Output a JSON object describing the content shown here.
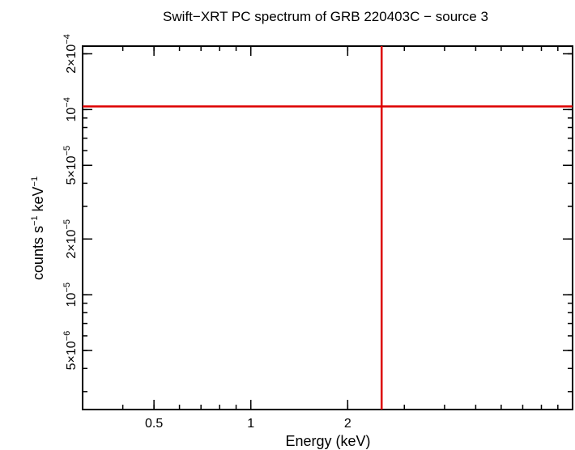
{
  "chart_data": {
    "type": "scatter",
    "title": "Swift−XRT PC spectrum of GRB 220403C − source 3",
    "xlabel": "Energy (keV)",
    "ylabel": "counts s⁻¹ keV⁻¹",
    "x_scale": "log",
    "y_scale": "log",
    "xlim": [
      0.3,
      10
    ],
    "ylim": [
      2.4e-06,
      0.00022
    ],
    "x_ticks": [
      {
        "value": 0.5,
        "label": "0.5"
      },
      {
        "value": 1,
        "label": "1"
      },
      {
        "value": 2,
        "label": "2"
      }
    ],
    "y_ticks": [
      {
        "value": 5e-06,
        "mant": "5×10",
        "exp": "−6"
      },
      {
        "value": 1e-05,
        "mant": "10",
        "exp": "−5"
      },
      {
        "value": 2e-05,
        "mant": "2×10",
        "exp": "−5"
      },
      {
        "value": 5e-05,
        "mant": "5×10",
        "exp": "−5"
      },
      {
        "value": 0.0001,
        "mant": "10",
        "exp": "−4"
      },
      {
        "value": 0.0002,
        "mant": "2×10",
        "exp": "−4"
      }
    ],
    "series": [
      {
        "color": "#dd0000",
        "points": [
          {
            "x": 2.55,
            "y": 0.000104,
            "xerr": [
              0.3,
              10
            ],
            "yerr": [
              2.4e-06,
              0.00022
            ]
          }
        ]
      }
    ],
    "grid": false,
    "legend": "none"
  }
}
